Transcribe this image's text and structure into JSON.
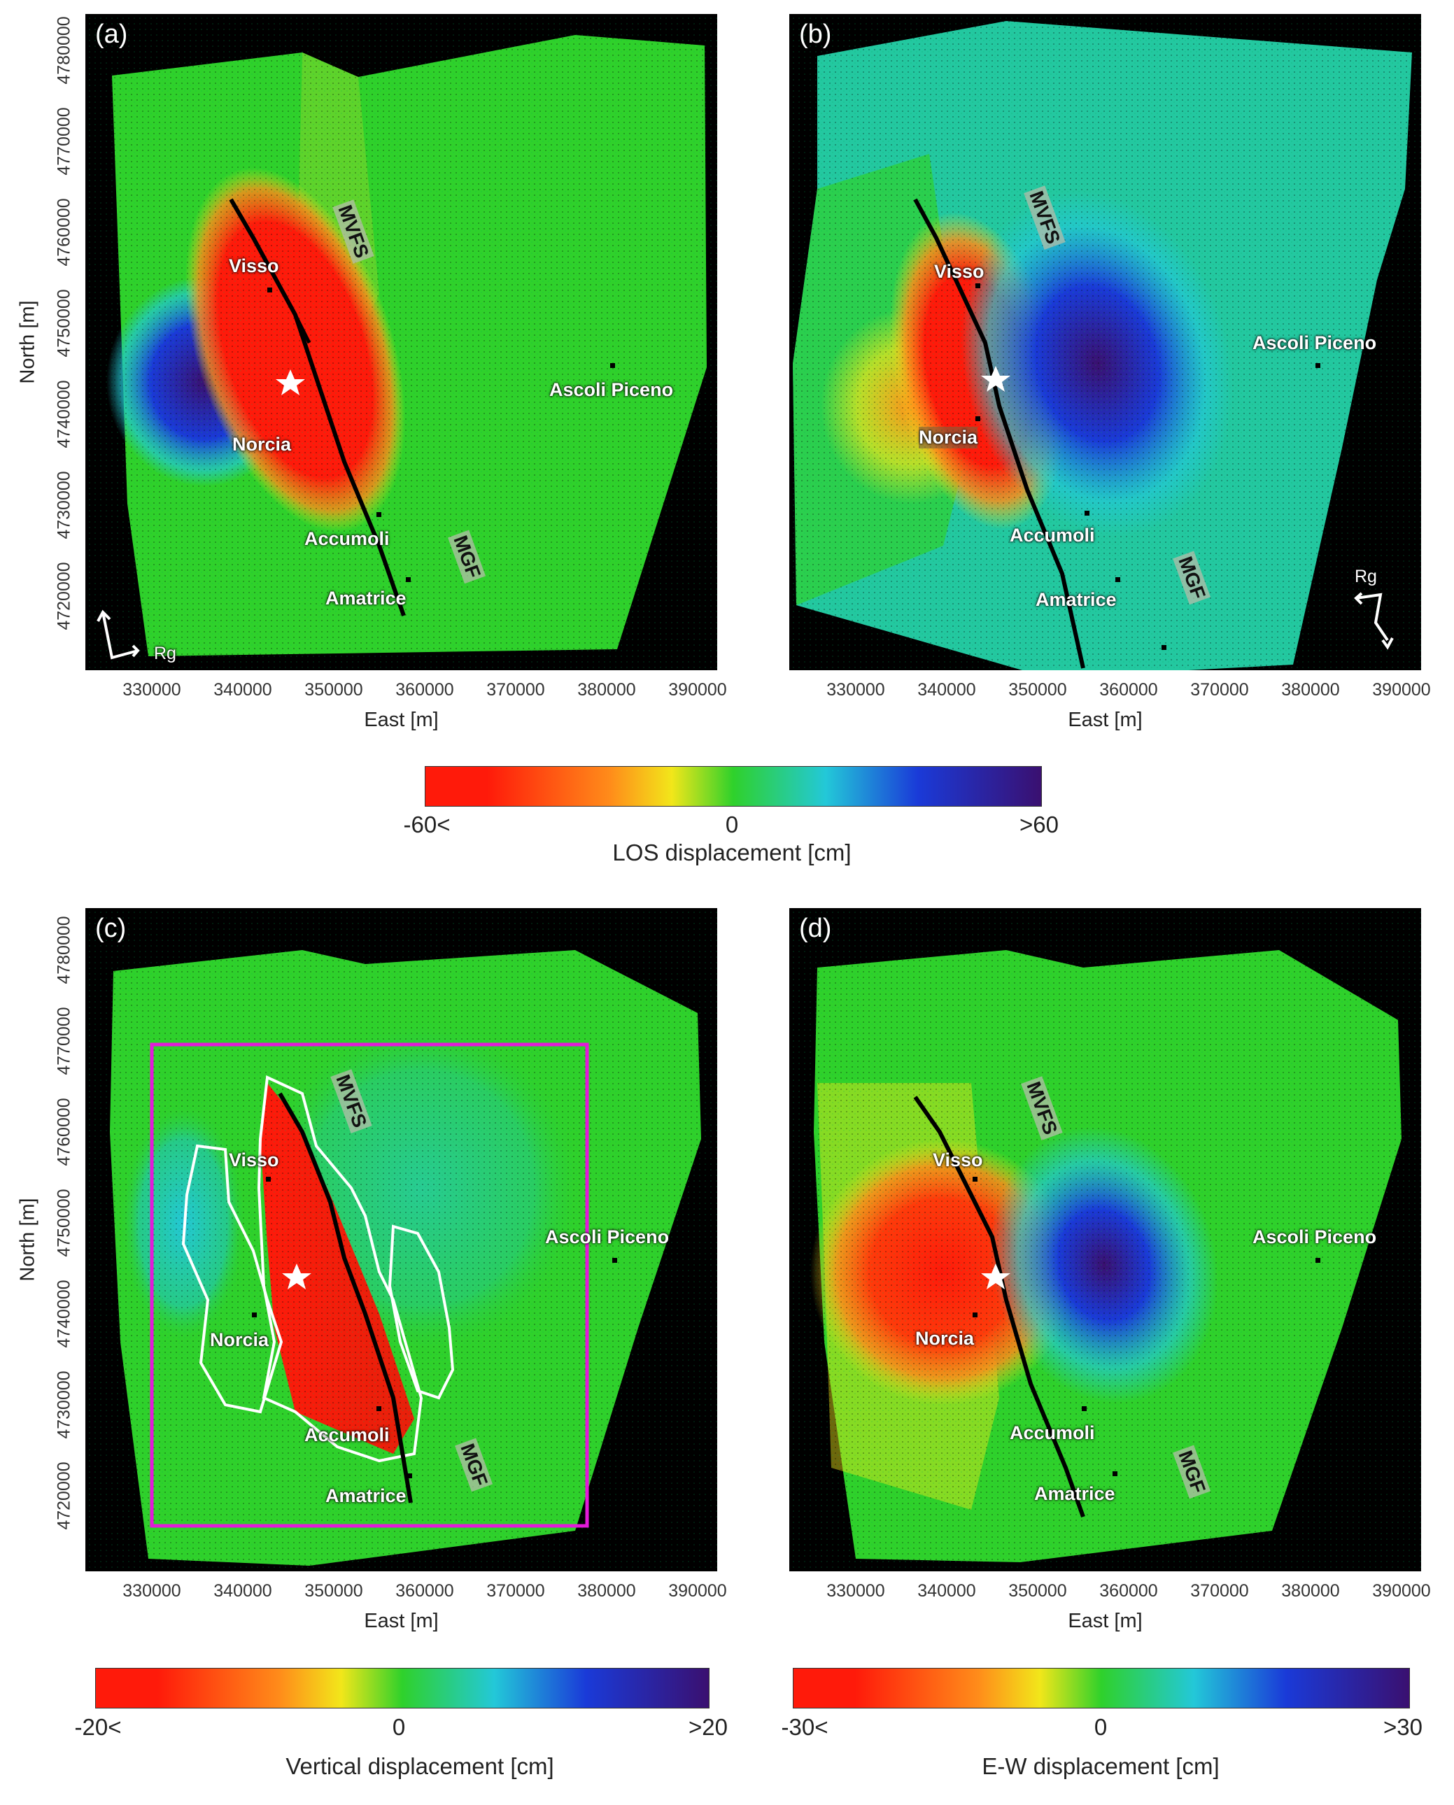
{
  "panels": [
    {
      "letter": "(a)",
      "field": "los_a",
      "x_title": "East [m]",
      "y_title": "North [m]",
      "show_y_axis": true,
      "places": [
        "Visso",
        "Norcia",
        "Accumoli",
        "Amatrice",
        "Ascoli Piceno"
      ],
      "faults": [
        "MVFS",
        "MGF"
      ],
      "rg_label": "Rg"
    },
    {
      "letter": "(b)",
      "field": "los_b",
      "x_title": "East [m]",
      "y_title": "",
      "show_y_axis": false,
      "places": [
        "Visso",
        "Norcia",
        "Accumoli",
        "Amatrice",
        "Ascoli Piceno"
      ],
      "faults": [
        "MVFS",
        "MGF"
      ],
      "rg_label": "Rg"
    },
    {
      "letter": "(c)",
      "field": "vertical",
      "x_title": "East [m]",
      "y_title": "North [m]",
      "show_y_axis": true,
      "places": [
        "Visso",
        "Norcia",
        "Accumoli",
        "Amatrice",
        "Ascoli Piceno"
      ],
      "faults": [
        "MVFS",
        "MGF"
      ],
      "rg_label": ""
    },
    {
      "letter": "(d)",
      "field": "ew",
      "x_title": "East [m]",
      "y_title": "",
      "show_y_axis": false,
      "places": [
        "Visso",
        "Norcia",
        "Accumoli",
        "Amatrice",
        "Ascoli Piceno"
      ],
      "faults": [
        "MVFS",
        "MGF"
      ],
      "rg_label": ""
    }
  ],
  "x_ticks": [
    "330000",
    "340000",
    "350000",
    "360000",
    "370000",
    "380000",
    "390000"
  ],
  "y_ticks": [
    "4780000",
    "4770000",
    "4760000",
    "4750000",
    "4740000",
    "4730000",
    "4720000"
  ],
  "colorbars": [
    {
      "min_label": "-60<",
      "mid_label": "0",
      "max_label": ">60",
      "title": "LOS displacement [cm]"
    },
    {
      "min_label": "-20<",
      "mid_label": "0",
      "max_label": ">20",
      "title": "Vertical displacement [cm]"
    },
    {
      "min_label": "-30<",
      "mid_label": "0",
      "max_label": ">30",
      "title": "E-W displacement [cm]"
    }
  ],
  "colors": {
    "red": "#ff1a0a",
    "orange": "#ff8c1a",
    "yellow": "#f2e61a",
    "green": "#2fd12b",
    "cyan": "#23c8d8",
    "blue": "#1a3ad8",
    "purple": "#3a1070",
    "box": "#e31ad9",
    "outline": "#ffffff",
    "fault_line": "#000000",
    "epicenter": "#ffffff"
  }
}
